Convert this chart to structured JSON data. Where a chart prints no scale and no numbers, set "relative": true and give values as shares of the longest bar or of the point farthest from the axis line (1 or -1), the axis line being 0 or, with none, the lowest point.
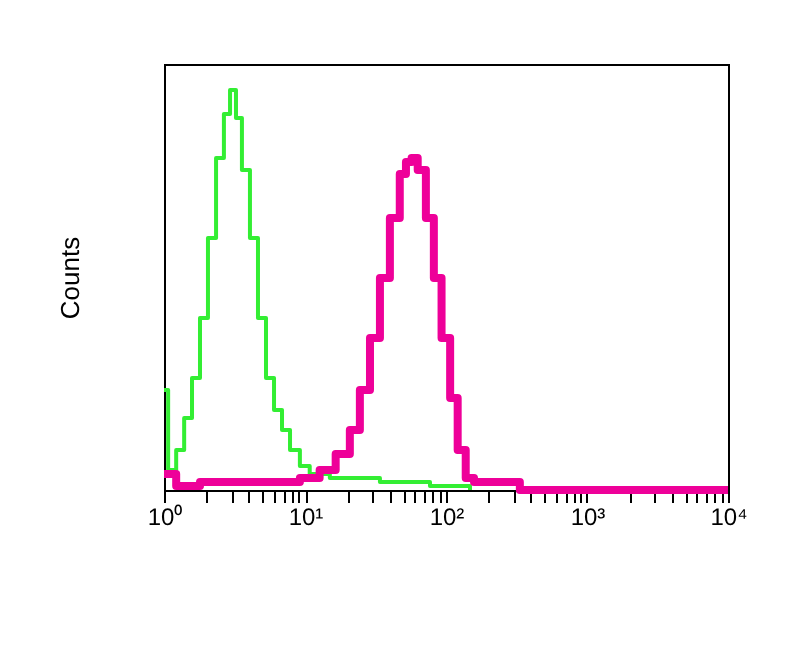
{
  "chart_data": {
    "type": "step",
    "ylabel": "Counts",
    "relative": true,
    "log": "x",
    "xlim": [
      1,
      10000
    ],
    "xticks": [
      {
        "value": 1,
        "label": "10⁰"
      },
      {
        "value": 2,
        "label": null
      },
      {
        "value": 3,
        "label": null
      },
      {
        "value": 4,
        "label": null
      },
      {
        "value": 5,
        "label": null
      },
      {
        "value": 6,
        "label": null
      },
      {
        "value": 7,
        "label": null
      },
      {
        "value": 8,
        "label": null
      },
      {
        "value": 9,
        "label": null
      },
      {
        "value": 10,
        "label": "10¹"
      },
      {
        "value": 20,
        "label": null
      },
      {
        "value": 30,
        "label": null
      },
      {
        "value": 40,
        "label": null
      },
      {
        "value": 50,
        "label": null
      },
      {
        "value": 60,
        "label": null
      },
      {
        "value": 70,
        "label": null
      },
      {
        "value": 80,
        "label": null
      },
      {
        "value": 90,
        "label": null
      },
      {
        "value": 100,
        "label": "10²"
      },
      {
        "value": 200,
        "label": null
      },
      {
        "value": 300,
        "label": null
      },
      {
        "value": 400,
        "label": null
      },
      {
        "value": 500,
        "label": null
      },
      {
        "value": 600,
        "label": null
      },
      {
        "value": 700,
        "label": null
      },
      {
        "value": 800,
        "label": null
      },
      {
        "value": 900,
        "label": null
      },
      {
        "value": 1000,
        "label": "10³"
      },
      {
        "value": 2000,
        "label": null
      },
      {
        "value": 3000,
        "label": null
      },
      {
        "value": 4000,
        "label": null
      },
      {
        "value": 5000,
        "label": null
      },
      {
        "value": 6000,
        "label": null
      },
      {
        "value": 7000,
        "label": null
      },
      {
        "value": 8000,
        "label": null
      },
      {
        "value": 9000,
        "label": null
      },
      {
        "value": 10000,
        "label": "10⁴"
      }
    ],
    "grid": false,
    "series": [
      {
        "color": "#33ee33",
        "x": [
          1,
          1.07,
          1.22,
          1.39,
          1.58,
          1.8,
          2.05,
          2.34,
          2.66,
          2.94,
          3.24,
          3.57,
          4.07,
          4.64,
          5.29,
          6.03,
          6.87,
          7.83,
          9.2,
          10.8,
          15,
          34,
          77,
          148
        ],
        "values": [
          0.25,
          0.05,
          0.1,
          0.18,
          0.28,
          0.43,
          0.63,
          0.83,
          0.94,
          1,
          0.93,
          0.8,
          0.63,
          0.43,
          0.28,
          0.2,
          0.15,
          0.1,
          0.06,
          0.04,
          0.03,
          0.02,
          0.01,
          0
        ]
      },
      {
        "color": "#ee0099",
        "x": [
          1,
          1.22,
          1.8,
          6.6,
          9.2,
          12.7,
          16.5,
          20.8,
          24.5,
          28.9,
          34,
          40,
          47,
          52,
          57,
          63,
          72,
          82,
          93,
          107,
          121,
          138,
          158,
          284,
          334,
          10000
        ],
        "values": [
          0.04,
          0.01,
          0.02,
          0.02,
          0.03,
          0.05,
          0.09,
          0.15,
          0.25,
          0.38,
          0.53,
          0.68,
          0.79,
          0.82,
          0.83,
          0.8,
          0.68,
          0.53,
          0.38,
          0.23,
          0.1,
          0.03,
          0.02,
          0.02,
          0,
          0
        ]
      }
    ]
  }
}
